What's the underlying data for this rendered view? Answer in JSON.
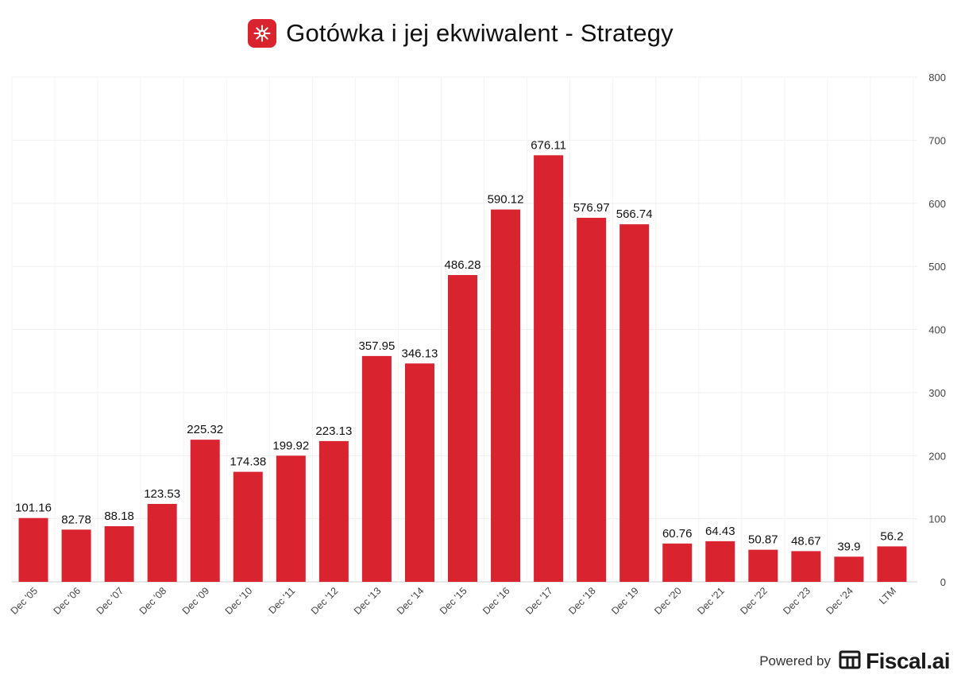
{
  "header": {
    "title": "Gotówka i jej ekwiwalent - Strategy",
    "logo_icon": "strategy-logo-icon",
    "logo_color": "#d9232f"
  },
  "footer": {
    "powered_by": "Powered by",
    "brand": "Fiscal.ai",
    "brand_icon": "fiscal-ai-logo-icon"
  },
  "chart_data": {
    "type": "bar",
    "title": "Gotówka i jej ekwiwalent - Strategy",
    "xlabel": "",
    "ylabel": "",
    "categories": [
      "Dec '05",
      "Dec '06",
      "Dec '07",
      "Dec '08",
      "Dec '09",
      "Dec '10",
      "Dec '11",
      "Dec '12",
      "Dec '13",
      "Dec '14",
      "Dec '15",
      "Dec '16",
      "Dec '17",
      "Dec '18",
      "Dec '19",
      "Dec '20",
      "Dec '21",
      "Dec '22",
      "Dec '23",
      "Dec '24",
      "LTM"
    ],
    "values": [
      101.16,
      82.78,
      88.18,
      123.53,
      225.32,
      174.38,
      199.92,
      223.13,
      357.95,
      346.13,
      486.28,
      590.12,
      676.11,
      576.97,
      566.74,
      60.76,
      64.43,
      50.87,
      48.67,
      39.9,
      56.2
    ],
    "value_labels": [
      "101.16",
      "82.78",
      "88.18",
      "123.53",
      "225.32",
      "174.38",
      "199.92",
      "223.13",
      "357.95",
      "346.13",
      "486.28",
      "590.12",
      "676.11",
      "576.97",
      "566.74",
      "60.76",
      "64.43",
      "50.87",
      "48.67",
      "39.9",
      "56.2"
    ],
    "ylim": [
      0,
      800
    ],
    "yticks": [
      0,
      100,
      200,
      300,
      400,
      500,
      600,
      700,
      800
    ],
    "y_axis_side": "right",
    "grid": true,
    "legend": "none",
    "bar_color": "#d9232f"
  }
}
